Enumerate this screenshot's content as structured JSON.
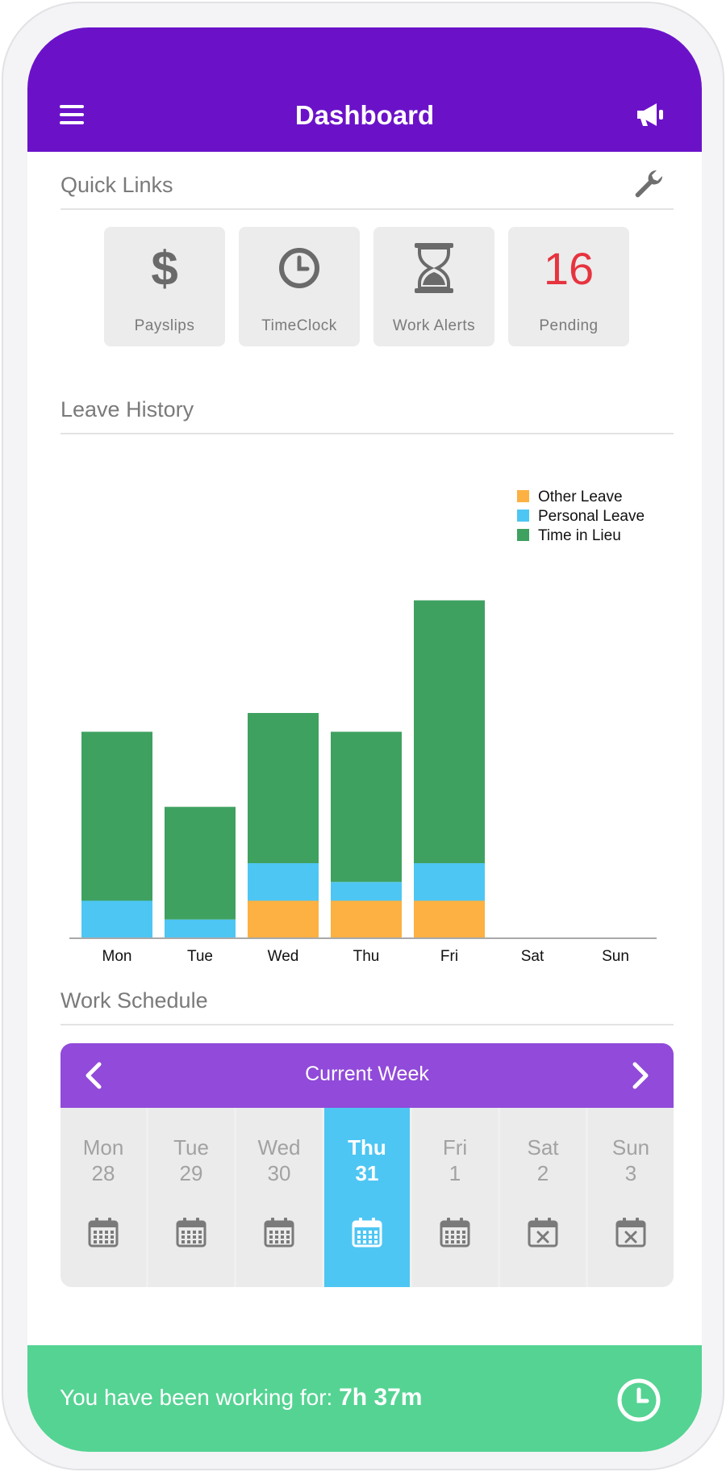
{
  "header": {
    "title": "Dashboard"
  },
  "quick_links": {
    "title": "Quick Links",
    "items": [
      {
        "label": "Payslips",
        "glyph": "$",
        "icon": "dollar-icon"
      },
      {
        "label": "TimeClock",
        "icon": "clock-icon"
      },
      {
        "label": "Work Alerts",
        "icon": "hourglass-icon"
      },
      {
        "label": "Pending",
        "count": "16"
      }
    ]
  },
  "leave_history": {
    "title": "Leave History"
  },
  "chart_data": {
    "type": "bar",
    "stacked": true,
    "categories": [
      "Mon",
      "Tue",
      "Wed",
      "Thu",
      "Fri",
      "Sat",
      "Sun"
    ],
    "series": [
      {
        "name": "Other Leave",
        "color": "#fcb142",
        "values": [
          0,
          0,
          1,
          1,
          1,
          0,
          0
        ]
      },
      {
        "name": "Personal Leave",
        "color": "#4ec6f3",
        "values": [
          1,
          0.5,
          1,
          0.5,
          1,
          0,
          0
        ]
      },
      {
        "name": "Time in Lieu",
        "color": "#3fa160",
        "values": [
          4.5,
          3,
          4,
          4,
          7,
          0,
          0
        ]
      }
    ],
    "legend_order": [
      "Other Leave",
      "Personal Leave",
      "Time in Lieu"
    ],
    "legend_position": "top-right",
    "ylim": [
      0,
      9
    ],
    "grid": false
  },
  "work_schedule": {
    "title": "Work Schedule",
    "week_label": "Current Week",
    "days": [
      {
        "name": "Mon",
        "date": "28",
        "icon": "calendar-icon",
        "active": false
      },
      {
        "name": "Tue",
        "date": "29",
        "icon": "calendar-icon",
        "active": false
      },
      {
        "name": "Wed",
        "date": "30",
        "icon": "calendar-icon",
        "active": false
      },
      {
        "name": "Thu",
        "date": "31",
        "icon": "calendar-icon",
        "active": true
      },
      {
        "name": "Fri",
        "date": "1",
        "icon": "calendar-icon",
        "active": false
      },
      {
        "name": "Sat",
        "date": "2",
        "icon": "calendar-x-icon",
        "active": false
      },
      {
        "name": "Sun",
        "date": "3",
        "icon": "calendar-x-icon",
        "active": false
      }
    ]
  },
  "status_bar": {
    "message": "You have been working for:",
    "duration": "7h 37m"
  },
  "colors": {
    "header": "#6b12c9",
    "week_header": "#914ad9",
    "active_day": "#4ec6f3",
    "status_bar": "#55d393",
    "pending": "#e6343f"
  }
}
